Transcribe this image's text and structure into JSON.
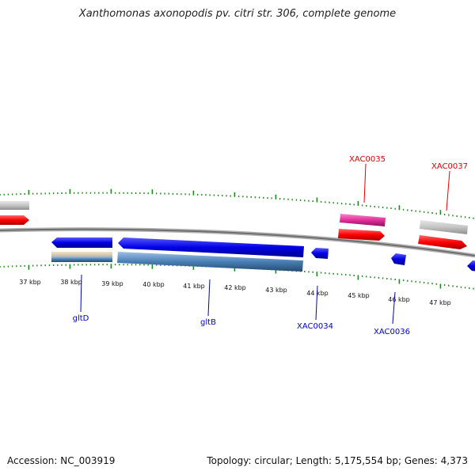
{
  "title": "Xanthomonas axonopodis pv. citri str. 306, complete genome",
  "colors": {
    "tick": "#1a8a1a",
    "backbone": "#7a7a7a",
    "forward_gene": "#ff0000",
    "reverse_gene": "#0000e6",
    "cds_gray": "#bdbdbd",
    "cds_steel": "#4a7fb5",
    "rna_pink": "#e0309a",
    "label_red": "#e00000",
    "label_blue": "#0000cc"
  },
  "scale_labels": [
    "37 kbp",
    "38 kbp",
    "39 kbp",
    "40 kbp",
    "41 kbp",
    "42 kbp",
    "43 kbp",
    "44 kbp",
    "45 kbp",
    "46 kbp",
    "47 kbp"
  ],
  "gene_labels": {
    "top": [
      {
        "text": "XAC0035",
        "color": "red"
      },
      {
        "text": "XAC0037",
        "color": "red"
      }
    ],
    "bottom": [
      {
        "text": "gltD",
        "color": "blue"
      },
      {
        "text": "gltB",
        "color": "blue"
      },
      {
        "text": "XAC0034",
        "color": "blue"
      },
      {
        "text": "XAC0036",
        "color": "blue"
      }
    ]
  },
  "footer": {
    "accession": "Accession: NC_003919",
    "topology": "Topology: circular; Length: 5,175,554 bp; Genes: 4,373"
  }
}
